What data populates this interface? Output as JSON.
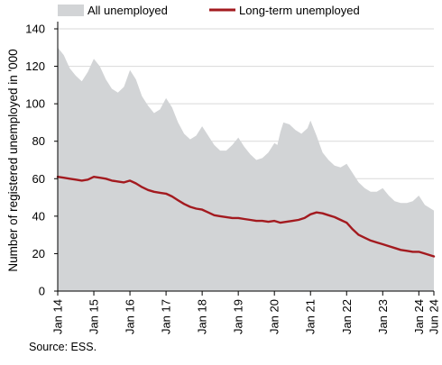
{
  "chart_data": {
    "type": "area",
    "title": "",
    "xlabel": "",
    "ylabel": "Number of registered unemployed in '000",
    "ylim": [
      0,
      140
    ],
    "yticks": [
      0,
      20,
      40,
      60,
      80,
      100,
      120,
      140
    ],
    "xticks": [
      {
        "label": "Jan 14",
        "x": "2014-01"
      },
      {
        "label": "Jan 15",
        "x": "2015-01"
      },
      {
        "label": "Jan 16",
        "x": "2016-01"
      },
      {
        "label": "Jan 17",
        "x": "2017-01"
      },
      {
        "label": "Jan 18",
        "x": "2018-01"
      },
      {
        "label": "Jan 19",
        "x": "2019-01"
      },
      {
        "label": "Jan 20",
        "x": "2020-01"
      },
      {
        "label": "Jan 21",
        "x": "2021-01"
      },
      {
        "label": "Jan 22",
        "x": "2022-01"
      },
      {
        "label": "Jan 23",
        "x": "2023-01"
      },
      {
        "label": "Jan 24",
        "x": "2024-01"
      },
      {
        "label": "Jun 24",
        "x": "2024-06"
      }
    ],
    "grid": {
      "horizontal": true,
      "vertical": false
    },
    "legend_position": "top",
    "source": "Source: ESS.",
    "series": [
      {
        "name": "All unemployed",
        "style": "area",
        "color": "#d2d4d6",
        "points": [
          [
            "2014-01",
            130
          ],
          [
            "2014-03",
            126
          ],
          [
            "2014-05",
            119
          ],
          [
            "2014-07",
            115
          ],
          [
            "2014-09",
            112
          ],
          [
            "2014-11",
            117
          ],
          [
            "2015-01",
            124
          ],
          [
            "2015-03",
            120
          ],
          [
            "2015-05",
            113
          ],
          [
            "2015-07",
            108
          ],
          [
            "2015-09",
            106
          ],
          [
            "2015-11",
            109
          ],
          [
            "2016-01",
            118
          ],
          [
            "2016-03",
            113
          ],
          [
            "2016-05",
            104
          ],
          [
            "2016-07",
            99
          ],
          [
            "2016-09",
            95
          ],
          [
            "2016-11",
            97
          ],
          [
            "2017-01",
            103
          ],
          [
            "2017-03",
            98
          ],
          [
            "2017-05",
            90
          ],
          [
            "2017-07",
            84
          ],
          [
            "2017-09",
            81
          ],
          [
            "2017-11",
            83
          ],
          [
            "2018-01",
            88
          ],
          [
            "2018-03",
            83
          ],
          [
            "2018-05",
            78
          ],
          [
            "2018-07",
            75
          ],
          [
            "2018-09",
            75
          ],
          [
            "2018-11",
            78
          ],
          [
            "2019-01",
            82
          ],
          [
            "2019-03",
            77
          ],
          [
            "2019-05",
            73
          ],
          [
            "2019-07",
            70
          ],
          [
            "2019-09",
            71
          ],
          [
            "2019-11",
            74
          ],
          [
            "2020-01",
            79
          ],
          [
            "2020-02",
            78
          ],
          [
            "2020-03",
            85
          ],
          [
            "2020-04",
            90
          ],
          [
            "2020-06",
            89
          ],
          [
            "2020-08",
            86
          ],
          [
            "2020-10",
            84
          ],
          [
            "2020-12",
            87
          ],
          [
            "2021-01",
            91
          ],
          [
            "2021-03",
            83
          ],
          [
            "2021-05",
            74
          ],
          [
            "2021-07",
            70
          ],
          [
            "2021-09",
            67
          ],
          [
            "2021-11",
            66
          ],
          [
            "2022-01",
            68
          ],
          [
            "2022-03",
            63
          ],
          [
            "2022-05",
            58
          ],
          [
            "2022-07",
            55
          ],
          [
            "2022-09",
            53
          ],
          [
            "2022-11",
            53
          ],
          [
            "2023-01",
            55
          ],
          [
            "2023-03",
            51
          ],
          [
            "2023-05",
            48
          ],
          [
            "2023-07",
            47
          ],
          [
            "2023-09",
            47
          ],
          [
            "2023-11",
            48
          ],
          [
            "2024-01",
            51
          ],
          [
            "2024-03",
            46
          ],
          [
            "2024-06",
            43
          ]
        ]
      },
      {
        "name": "Long-term unemployed",
        "style": "line",
        "color": "#a31a1f",
        "points": [
          [
            "2014-01",
            61
          ],
          [
            "2014-03",
            60.5
          ],
          [
            "2014-05",
            60
          ],
          [
            "2014-07",
            59.5
          ],
          [
            "2014-09",
            59
          ],
          [
            "2014-11",
            59.5
          ],
          [
            "2015-01",
            61
          ],
          [
            "2015-03",
            60.5
          ],
          [
            "2015-05",
            60
          ],
          [
            "2015-07",
            59
          ],
          [
            "2015-09",
            58.5
          ],
          [
            "2015-11",
            58
          ],
          [
            "2016-01",
            59
          ],
          [
            "2016-03",
            57.5
          ],
          [
            "2016-05",
            55.5
          ],
          [
            "2016-07",
            54
          ],
          [
            "2016-09",
            53
          ],
          [
            "2016-11",
            52.5
          ],
          [
            "2017-01",
            52
          ],
          [
            "2017-03",
            50.5
          ],
          [
            "2017-05",
            48.5
          ],
          [
            "2017-07",
            46.5
          ],
          [
            "2017-09",
            45
          ],
          [
            "2017-11",
            44
          ],
          [
            "2018-01",
            43.5
          ],
          [
            "2018-03",
            42
          ],
          [
            "2018-05",
            40.5
          ],
          [
            "2018-07",
            40
          ],
          [
            "2018-09",
            39.5
          ],
          [
            "2018-11",
            39
          ],
          [
            "2019-01",
            39
          ],
          [
            "2019-03",
            38.5
          ],
          [
            "2019-05",
            38
          ],
          [
            "2019-07",
            37.5
          ],
          [
            "2019-09",
            37.5
          ],
          [
            "2019-11",
            37
          ],
          [
            "2020-01",
            37.5
          ],
          [
            "2020-03",
            36.5
          ],
          [
            "2020-05",
            37
          ],
          [
            "2020-07",
            37.5
          ],
          [
            "2020-09",
            38
          ],
          [
            "2020-11",
            39
          ],
          [
            "2021-01",
            41
          ],
          [
            "2021-03",
            42
          ],
          [
            "2021-05",
            41.5
          ],
          [
            "2021-07",
            40.5
          ],
          [
            "2021-09",
            39.5
          ],
          [
            "2021-11",
            38
          ],
          [
            "2022-01",
            36.5
          ],
          [
            "2022-03",
            33
          ],
          [
            "2022-05",
            30
          ],
          [
            "2022-07",
            28.5
          ],
          [
            "2022-09",
            27
          ],
          [
            "2022-11",
            26
          ],
          [
            "2023-01",
            25
          ],
          [
            "2023-03",
            24
          ],
          [
            "2023-05",
            23
          ],
          [
            "2023-07",
            22
          ],
          [
            "2023-09",
            21.5
          ],
          [
            "2023-11",
            21
          ],
          [
            "2024-01",
            21
          ],
          [
            "2024-03",
            20
          ],
          [
            "2024-06",
            18.5
          ]
        ]
      }
    ]
  }
}
